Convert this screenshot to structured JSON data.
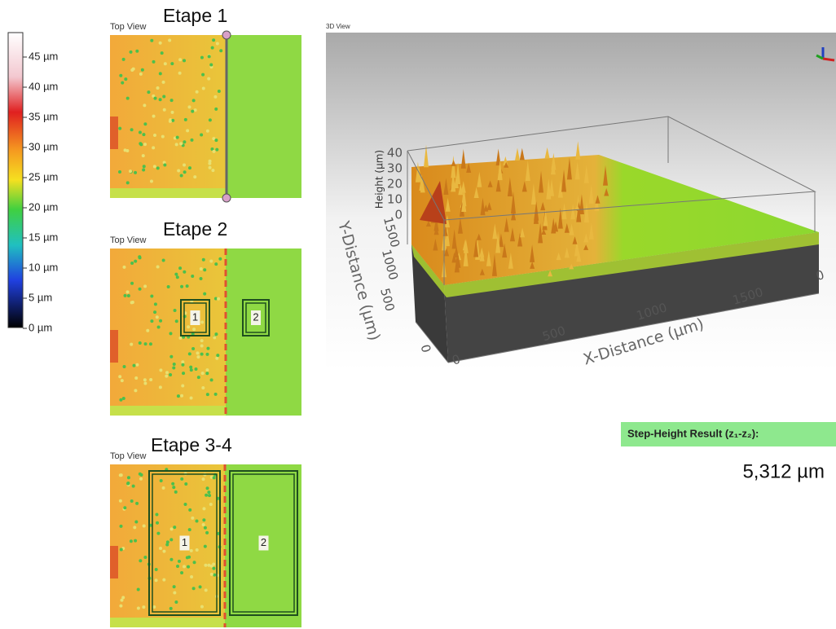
{
  "colorbar": {
    "labels": [
      "45 µm",
      "40 µm",
      "35 µm",
      "30 µm",
      "25 µm",
      "20 µm",
      "15 µm",
      "10 µm",
      "5 µm",
      "0 µm"
    ]
  },
  "panels": [
    {
      "caption": "Top View",
      "title": "Etape 1"
    },
    {
      "caption": "Top View",
      "title": "Etape 2",
      "regions": [
        "1",
        "2"
      ]
    },
    {
      "caption": "Top View",
      "title": "Etape 3-4",
      "regions": [
        "1",
        "2"
      ]
    }
  ],
  "view_3d": {
    "caption": "3D View",
    "z_axis": {
      "label": "Height (µm)",
      "ticks": [
        "40",
        "30",
        "20",
        "10",
        "0"
      ]
    },
    "y_axis": {
      "label": "Y-Distance (µm)",
      "ticks": [
        "1500",
        "1000",
        "500",
        "0"
      ]
    },
    "x_axis": {
      "label": "X-Distance (µm)",
      "ticks": [
        "0",
        "500",
        "1000",
        "1500"
      ]
    },
    "other_ticks": [
      "0"
    ]
  },
  "result": {
    "label": "Step-Height Result (z₁-z₂):",
    "value": "5,312 µm"
  }
}
